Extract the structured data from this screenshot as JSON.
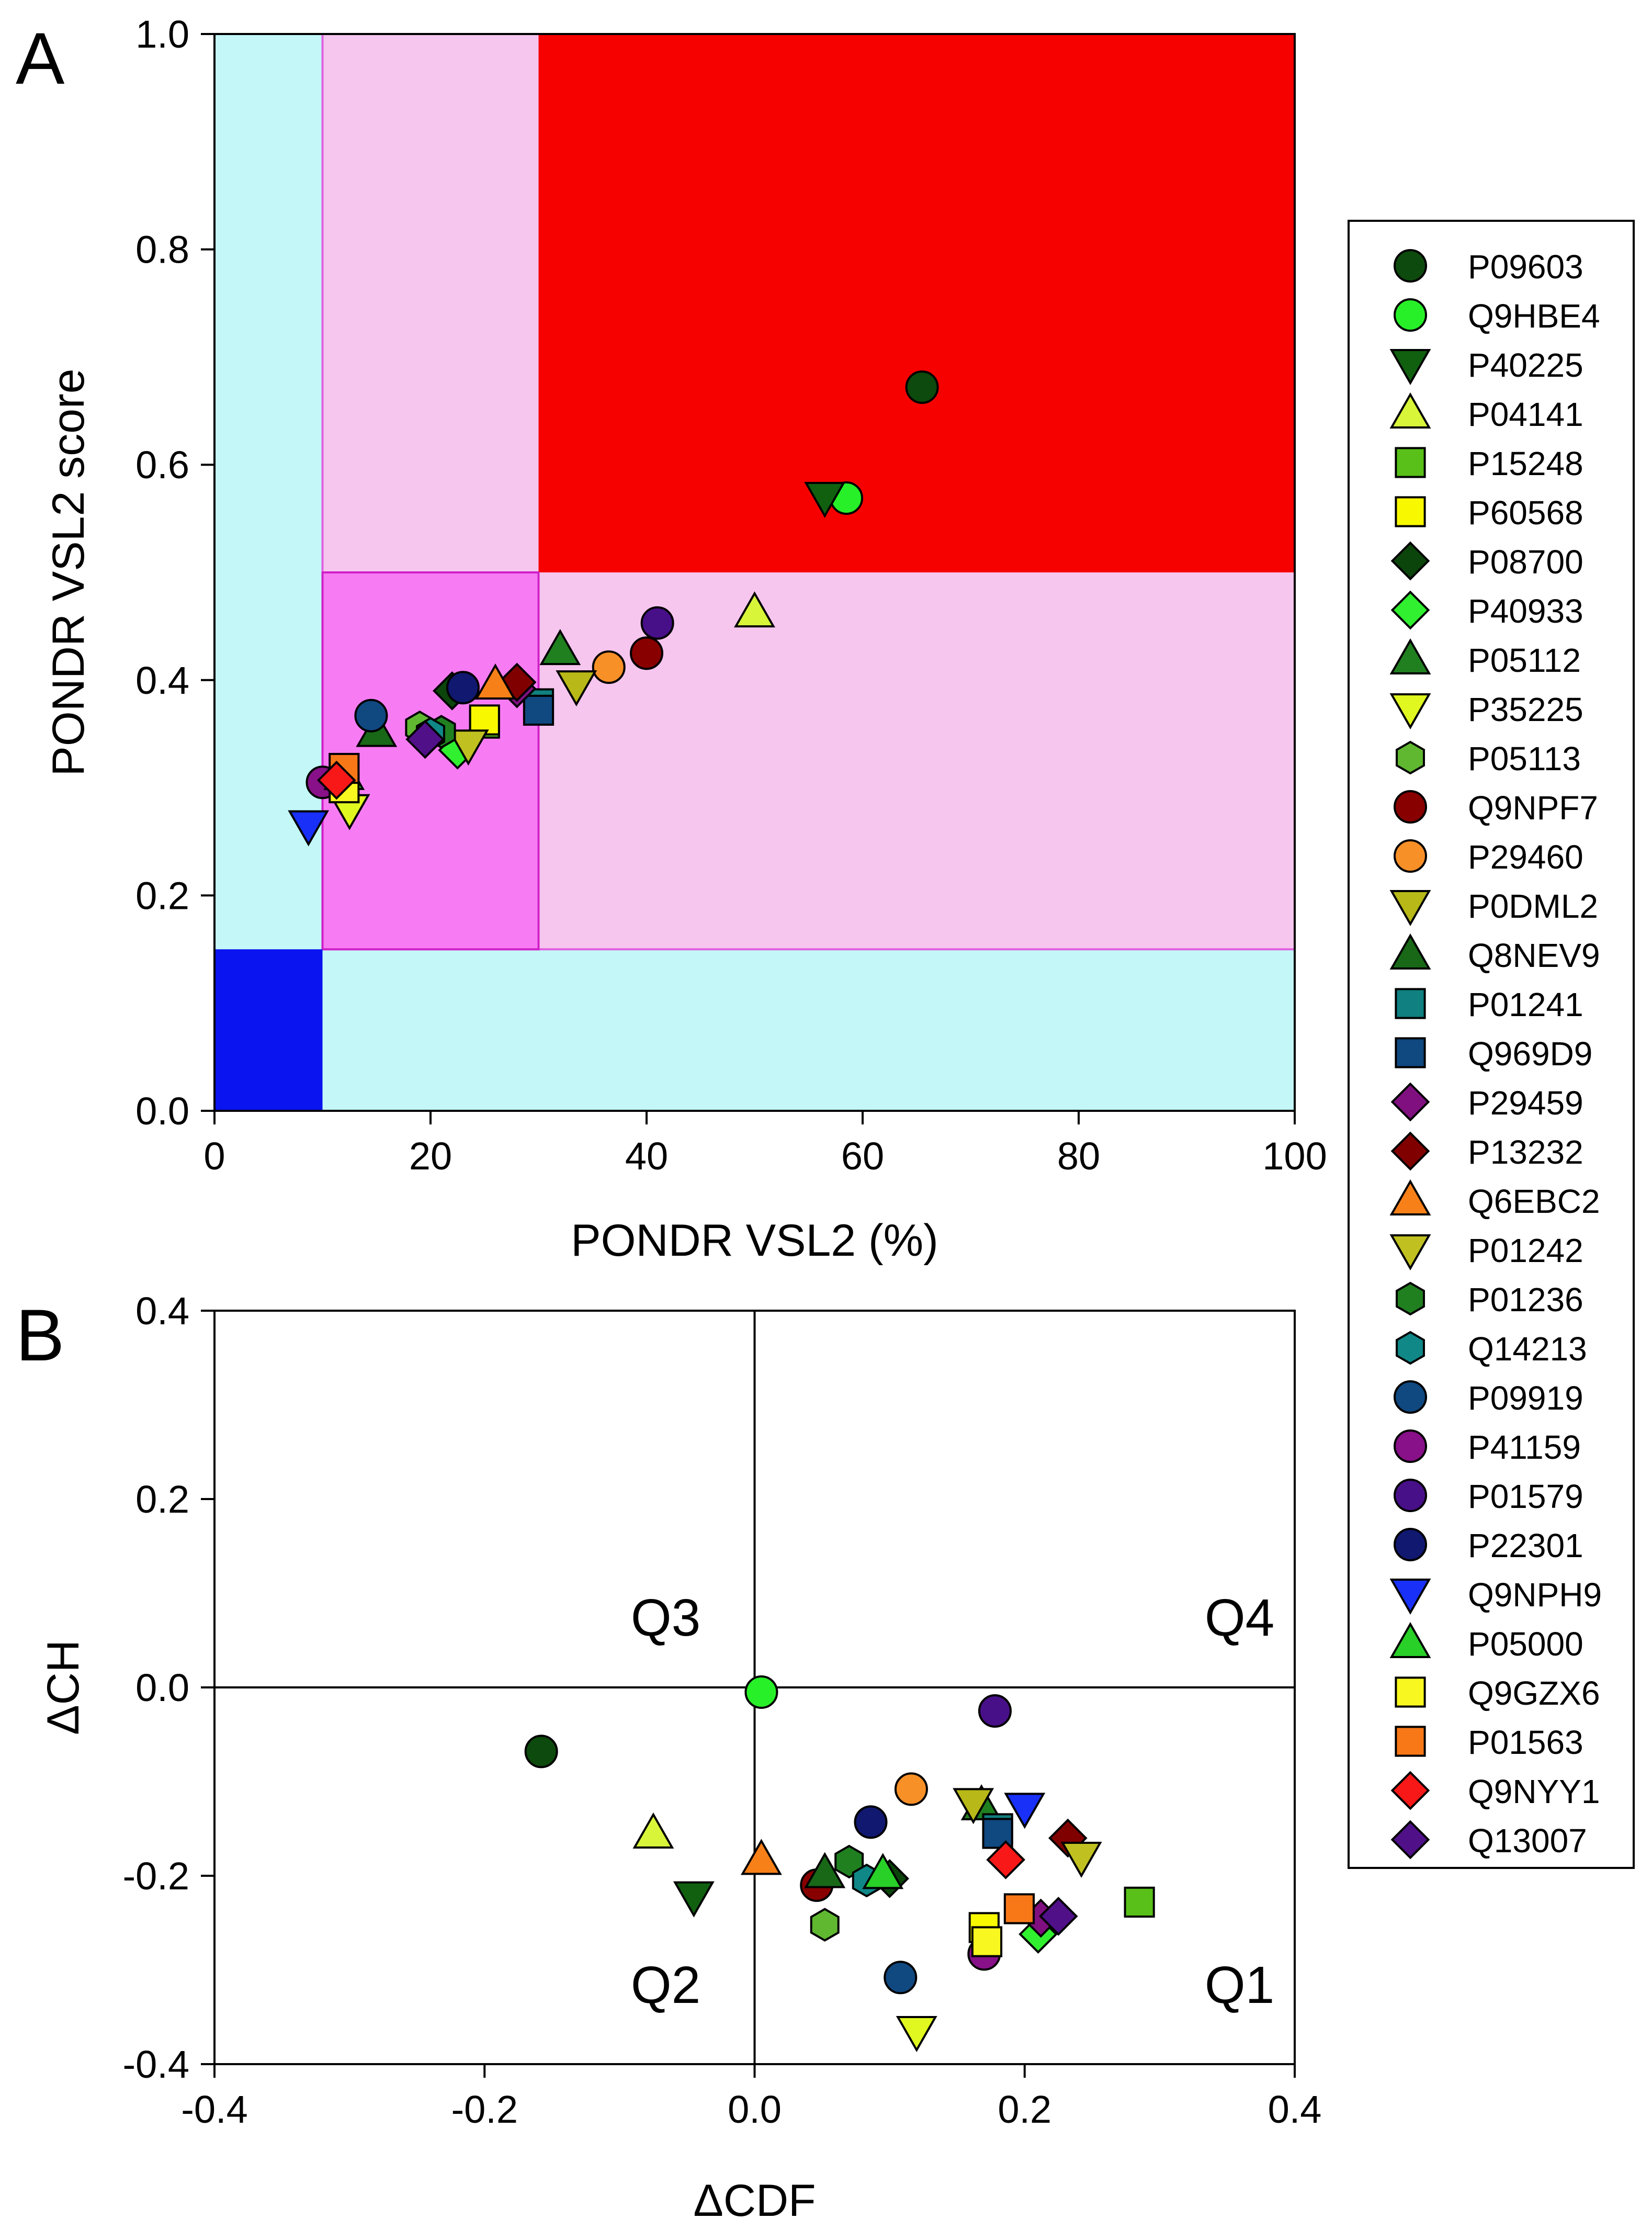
{
  "chart_data": [
    {
      "panel": "A",
      "type": "scatter",
      "xlabel": "PONDR VSL2 (%)",
      "ylabel": "PONDR VSL2 score",
      "xlim": [
        0,
        100
      ],
      "ylim": [
        0,
        1.0
      ],
      "xticks": [
        "0",
        "20",
        "40",
        "60",
        "80",
        "100"
      ],
      "yticks": [
        "0.0",
        "0.2",
        "0.4",
        "0.6",
        "0.8",
        "1.0"
      ],
      "grid": false,
      "background_regions": [
        {
          "name": "moderately-disordered",
          "x": [
            0,
            100
          ],
          "y": [
            0,
            1.0
          ],
          "color": "#c4f8f8"
        },
        {
          "name": "moderate-low",
          "x": [
            10,
            100
          ],
          "y": [
            0.15,
            1.0
          ],
          "color": "#f6c6ef"
        },
        {
          "name": "highly-disordered",
          "x": [
            30,
            100
          ],
          "y": [
            0.5,
            1.0
          ],
          "color": "#f70000"
        },
        {
          "name": "moderate-core",
          "x": [
            10,
            30
          ],
          "y": [
            0.15,
            0.5
          ],
          "color": "#f77cf4"
        },
        {
          "name": "highly-ordered",
          "x": [
            0,
            10
          ],
          "y": [
            0,
            0.15
          ],
          "color": "#0a14f0"
        }
      ],
      "points": [
        {
          "id": "P09603",
          "x": 65.5,
          "y": 0.672
        },
        {
          "id": "Q9HBE4",
          "x": 58.5,
          "y": 0.569
        },
        {
          "id": "P40225",
          "x": 56.5,
          "y": 0.57
        },
        {
          "id": "P04141",
          "x": 50.0,
          "y": 0.463
        },
        {
          "id": "P15248",
          "x": 25.0,
          "y": 0.36
        },
        {
          "id": "P60568",
          "x": 25.0,
          "y": 0.363
        },
        {
          "id": "P08700",
          "x": 22.0,
          "y": 0.39
        },
        {
          "id": "P40933",
          "x": 22.5,
          "y": 0.335
        },
        {
          "id": "P05112",
          "x": 32.0,
          "y": 0.428
        },
        {
          "id": "P35225",
          "x": 12.5,
          "y": 0.28
        },
        {
          "id": "P05113",
          "x": 19.0,
          "y": 0.356
        },
        {
          "id": "Q9NPF7",
          "x": 40.0,
          "y": 0.425
        },
        {
          "id": "P29460",
          "x": 36.5,
          "y": 0.412
        },
        {
          "id": "P0DML2",
          "x": 33.5,
          "y": 0.395
        },
        {
          "id": "Q8NEV9",
          "x": 15.0,
          "y": 0.352
        },
        {
          "id": "P01241",
          "x": 30.0,
          "y": 0.378
        },
        {
          "id": "Q969D9",
          "x": 30.0,
          "y": 0.372
        },
        {
          "id": "P29459",
          "x": 28.0,
          "y": 0.392
        },
        {
          "id": "P13232",
          "x": 28.0,
          "y": 0.398
        },
        {
          "id": "Q6EBC2",
          "x": 26.0,
          "y": 0.396
        },
        {
          "id": "P01242",
          "x": 23.5,
          "y": 0.34
        },
        {
          "id": "P01236",
          "x": 21.0,
          "y": 0.352
        },
        {
          "id": "Q14213",
          "x": 20.0,
          "y": 0.35
        },
        {
          "id": "P09919",
          "x": 14.5,
          "y": 0.367
        },
        {
          "id": "P41159",
          "x": 10.0,
          "y": 0.305
        },
        {
          "id": "P01579",
          "x": 41.0,
          "y": 0.453
        },
        {
          "id": "P22301",
          "x": 23.0,
          "y": 0.393
        },
        {
          "id": "Q9NPH9",
          "x": 8.7,
          "y": 0.265
        },
        {
          "id": "P05000",
          "x": 12.0,
          "y": 0.312
        },
        {
          "id": "Q9GZX6",
          "x": 12.0,
          "y": 0.3
        },
        {
          "id": "P01563",
          "x": 12.0,
          "y": 0.318
        },
        {
          "id": "Q9NYY1",
          "x": 11.3,
          "y": 0.307
        },
        {
          "id": "Q13007",
          "x": 19.5,
          "y": 0.345
        }
      ]
    },
    {
      "panel": "B",
      "type": "scatter",
      "xlabel": "ΔCDF",
      "ylabel": "ΔCH",
      "xlim": [
        -0.4,
        0.4
      ],
      "ylim": [
        -0.4,
        0.4
      ],
      "xticks": [
        "-0.4",
        "-0.2",
        "0.0",
        "0.2",
        "0.4"
      ],
      "yticks": [
        "-0.4",
        "-0.2",
        "0.0",
        "0.2",
        "0.4"
      ],
      "grid": false,
      "quadrant_labels": [
        {
          "text": "Q3",
          "x": -0.04,
          "y": 0.055
        },
        {
          "text": "Q4",
          "x": 0.385,
          "y": 0.055
        },
        {
          "text": "Q2",
          "x": -0.04,
          "y": -0.335
        },
        {
          "text": "Q1",
          "x": 0.385,
          "y": -0.335
        }
      ],
      "points": [
        {
          "id": "P09603",
          "x": -0.158,
          "y": -0.068
        },
        {
          "id": "Q9HBE4",
          "x": 0.005,
          "y": -0.005
        },
        {
          "id": "P40225",
          "x": -0.045,
          "y": -0.222
        },
        {
          "id": "P04141",
          "x": -0.075,
          "y": -0.155
        },
        {
          "id": "P15248",
          "x": 0.285,
          "y": -0.228
        },
        {
          "id": "P60568",
          "x": 0.17,
          "y": -0.255
        },
        {
          "id": "P08700",
          "x": 0.1,
          "y": -0.203
        },
        {
          "id": "P40933",
          "x": 0.21,
          "y": -0.262
        },
        {
          "id": "P05112",
          "x": 0.168,
          "y": -0.125
        },
        {
          "id": "P35225",
          "x": 0.12,
          "y": -0.365
        },
        {
          "id": "P05113",
          "x": 0.052,
          "y": -0.252
        },
        {
          "id": "Q9NPF7",
          "x": 0.046,
          "y": -0.21
        },
        {
          "id": "P29460",
          "x": 0.116,
          "y": -0.108
        },
        {
          "id": "P0DML2",
          "x": 0.162,
          "y": -0.123
        },
        {
          "id": "Q8NEV9",
          "x": 0.052,
          "y": -0.197
        },
        {
          "id": "P01241",
          "x": 0.18,
          "y": -0.15
        },
        {
          "id": "Q969D9",
          "x": 0.18,
          "y": -0.155
        },
        {
          "id": "P29459",
          "x": 0.212,
          "y": -0.245
        },
        {
          "id": "P13232",
          "x": 0.232,
          "y": -0.16
        },
        {
          "id": "Q6EBC2",
          "x": 0.005,
          "y": -0.183
        },
        {
          "id": "P01242",
          "x": 0.242,
          "y": -0.18
        },
        {
          "id": "P01236",
          "x": 0.07,
          "y": -0.185
        },
        {
          "id": "Q14213",
          "x": 0.083,
          "y": -0.205
        },
        {
          "id": "P09919",
          "x": 0.108,
          "y": -0.308
        },
        {
          "id": "P41159",
          "x": 0.17,
          "y": -0.283
        },
        {
          "id": "P01579",
          "x": 0.178,
          "y": -0.025
        },
        {
          "id": "P22301",
          "x": 0.086,
          "y": -0.143
        },
        {
          "id": "Q9NPH9",
          "x": 0.2,
          "y": -0.128
        },
        {
          "id": "P05000",
          "x": 0.095,
          "y": -0.198
        },
        {
          "id": "Q9GZX6",
          "x": 0.172,
          "y": -0.27
        },
        {
          "id": "P01563",
          "x": 0.196,
          "y": -0.235
        },
        {
          "id": "Q9NYY1",
          "x": 0.186,
          "y": -0.183
        },
        {
          "id": "Q13007",
          "x": 0.225,
          "y": -0.243
        }
      ]
    }
  ],
  "series_styles": [
    {
      "id": "P09603",
      "shape": "circle",
      "color": "#0d4a0d"
    },
    {
      "id": "Q9HBE4",
      "shape": "circle",
      "color": "#28f028"
    },
    {
      "id": "P40225",
      "shape": "triangle-down",
      "color": "#106010"
    },
    {
      "id": "P04141",
      "shape": "triangle-up",
      "color": "#d8f53a"
    },
    {
      "id": "P15248",
      "shape": "square",
      "color": "#58c018"
    },
    {
      "id": "P60568",
      "shape": "square",
      "color": "#f8f800"
    },
    {
      "id": "P08700",
      "shape": "diamond",
      "color": "#0b450b"
    },
    {
      "id": "P40933",
      "shape": "diamond",
      "color": "#30f030"
    },
    {
      "id": "P05112",
      "shape": "triangle-up",
      "color": "#208020"
    },
    {
      "id": "P35225",
      "shape": "triangle-down",
      "color": "#e0f820"
    },
    {
      "id": "P05113",
      "shape": "hexagon",
      "color": "#60b830"
    },
    {
      "id": "Q9NPF7",
      "shape": "circle",
      "color": "#880000"
    },
    {
      "id": "P29460",
      "shape": "circle",
      "color": "#f89028"
    },
    {
      "id": "P0DML2",
      "shape": "triangle-down",
      "color": "#b8b818"
    },
    {
      "id": "Q8NEV9",
      "shape": "triangle-up",
      "color": "#186818"
    },
    {
      "id": "P01241",
      "shape": "square",
      "color": "#108080"
    },
    {
      "id": "Q969D9",
      "shape": "square",
      "color": "#104880"
    },
    {
      "id": "P29459",
      "shape": "diamond",
      "color": "#801080"
    },
    {
      "id": "P13232",
      "shape": "diamond",
      "color": "#800000"
    },
    {
      "id": "Q6EBC2",
      "shape": "triangle-up",
      "color": "#f88018"
    },
    {
      "id": "P01242",
      "shape": "triangle-down",
      "color": "#c0c020"
    },
    {
      "id": "P01236",
      "shape": "hexagon",
      "color": "#208020"
    },
    {
      "id": "Q14213",
      "shape": "hexagon",
      "color": "#108888"
    },
    {
      "id": "P09919",
      "shape": "circle",
      "color": "#104880"
    },
    {
      "id": "P41159",
      "shape": "circle",
      "color": "#881088"
    },
    {
      "id": "P01579",
      "shape": "circle",
      "color": "#481088"
    },
    {
      "id": "P22301",
      "shape": "circle",
      "color": "#101870"
    },
    {
      "id": "Q9NPH9",
      "shape": "triangle-down",
      "color": "#1830f8"
    },
    {
      "id": "P05000",
      "shape": "triangle-up",
      "color": "#28d028"
    },
    {
      "id": "Q9GZX6",
      "shape": "square",
      "color": "#f8f820"
    },
    {
      "id": "P01563",
      "shape": "square",
      "color": "#f87818"
    },
    {
      "id": "Q9NYY1",
      "shape": "diamond",
      "color": "#f81818"
    },
    {
      "id": "Q13007",
      "shape": "diamond",
      "color": "#501088"
    }
  ],
  "panel_labels": {
    "a": "A",
    "b": "B"
  }
}
